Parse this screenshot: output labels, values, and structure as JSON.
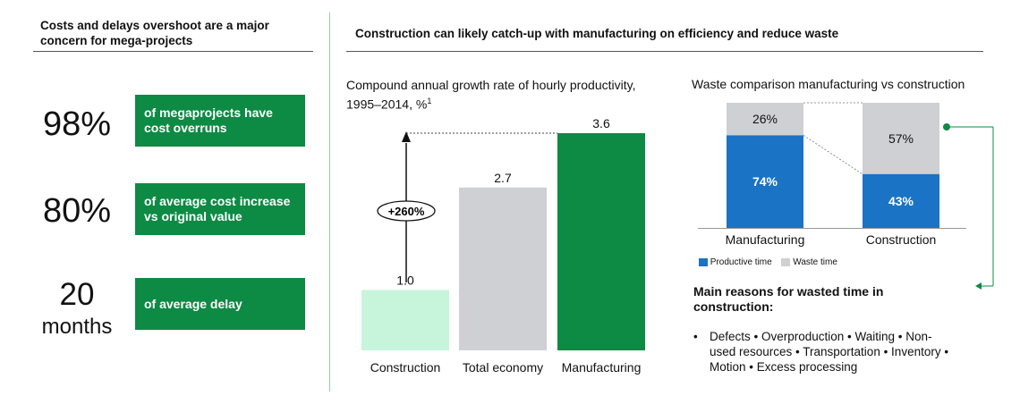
{
  "left": {
    "header": "Costs and delays overshoot are a major concern for mega-projects",
    "stats": [
      {
        "value": "98%",
        "unit": "",
        "text": "of megaprojects have cost overruns"
      },
      {
        "value": "80%",
        "unit": "",
        "text": "of average cost increase vs original value"
      },
      {
        "value": "20",
        "unit": "months",
        "text": "of average delay"
      }
    ]
  },
  "right": {
    "header": "Construction can likely catch-up with manufacturing on efficiency and reduce waste"
  },
  "bar_chart": {
    "title_line1": "Compound annual growth rate of hourly productivity,",
    "title_line2": "1995–2014, %",
    "title_sup": "1",
    "growth_label": "+260%"
  },
  "waste_chart": {
    "title": "Waste comparison manufacturing vs construction",
    "legend_productive": "Productive time",
    "legend_waste": "Waste time"
  },
  "reasons": {
    "title": "Main reasons for wasted time in construction:",
    "bullet": "•",
    "text_line1": "Defects • Overproduction • Waiting • Non-",
    "text_line2": "used resources • Transportation • Inventory •",
    "text_line3": "Motion • Excess processing"
  },
  "colors": {
    "accent_green": "#0d8a44",
    "light_green": "#c6f5dc",
    "gray": "#cfd0d4",
    "blue": "#1a73c4"
  },
  "chart_data": [
    {
      "type": "bar",
      "categories": [
        "Construction",
        "Total economy",
        "Manufacturing"
      ],
      "values": [
        1.0,
        2.7,
        3.6
      ],
      "data_labels": [
        "1.0",
        "2.7",
        "3.6"
      ],
      "ylim": [
        0,
        3.6
      ]
    },
    {
      "type": "bar",
      "stacked": true,
      "percent": true,
      "categories": [
        "Manufacturing",
        "Construction"
      ],
      "series": [
        {
          "name": "Productive time",
          "values": [
            74,
            43
          ],
          "labels": [
            "74%",
            "43%"
          ]
        },
        {
          "name": "Waste time",
          "values": [
            26,
            57
          ],
          "labels": [
            "26%",
            "57%"
          ]
        }
      ],
      "ylim": [
        0,
        100
      ],
      "legend": "bottom-left"
    }
  ]
}
